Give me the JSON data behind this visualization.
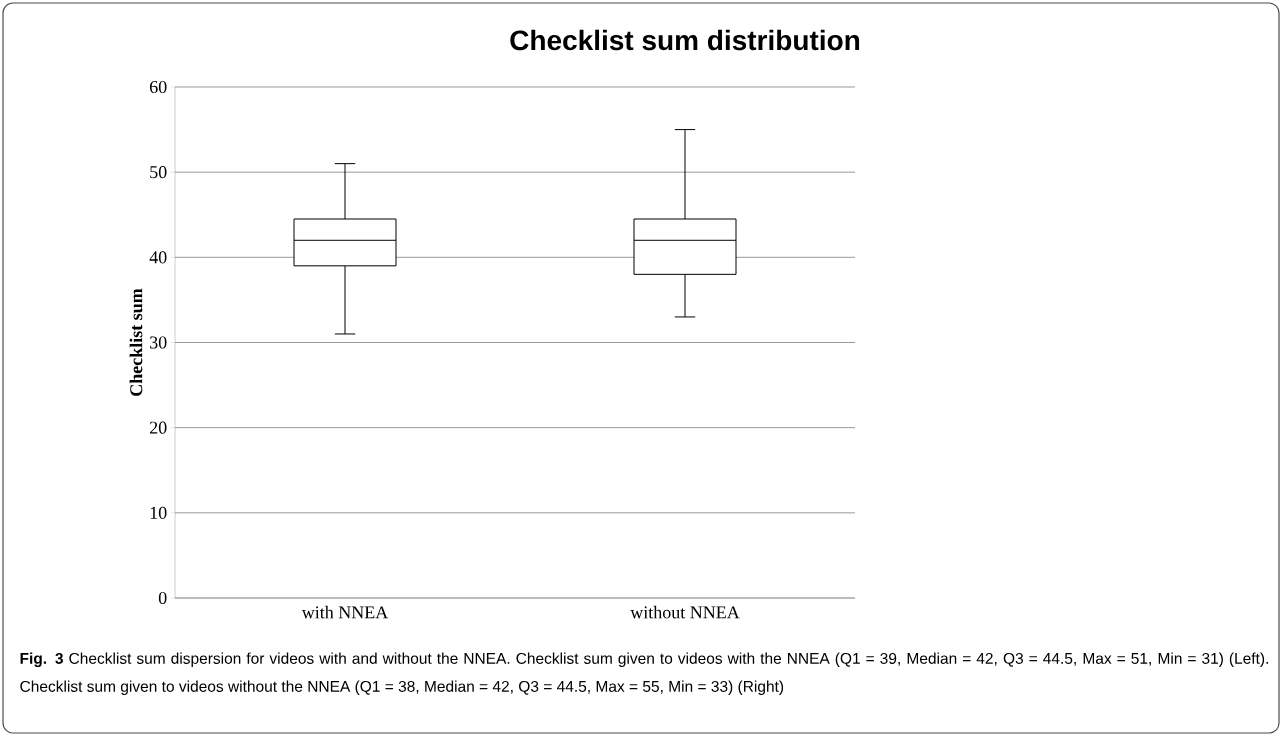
{
  "chart_data": {
    "type": "box",
    "title": "Checklist sum distribution",
    "ylabel": "Checklist sum",
    "categories": [
      "with NNEA",
      "without NNEA"
    ],
    "boxes": [
      {
        "low": 31,
        "q1": 39,
        "median": 42,
        "q3": 44.5,
        "high": 51
      },
      {
        "low": 33,
        "q1": 38,
        "median": 42,
        "q3": 44.5,
        "high": 55
      }
    ],
    "ylim": [
      0,
      60
    ],
    "yticks": [
      0,
      10,
      20,
      30,
      40,
      50,
      60
    ],
    "grid": "y",
    "annotations": [
      "**Fig. 3** Checklist sum dispersion for videos with and without the NNEA. Checklist sum given to videos with the NNEA (Q1 = 39, Median = 42, Q3 = 44.5, Max = 51, Min = 31) (Left). Checklist sum given to videos without the NNEA (Q1 = 38, Median = 42, Q3 = 44.5, Max = 55, Min = 33) (Right)"
    ]
  }
}
